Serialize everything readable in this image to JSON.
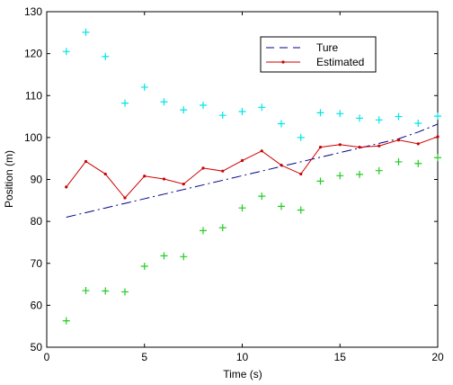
{
  "chart_data": {
    "type": "line",
    "title": "",
    "xlabel": "Time (s)",
    "ylabel": "Position (m)",
    "xlim": [
      0,
      20
    ],
    "ylim": [
      50,
      130
    ],
    "xticks": [
      0,
      5,
      10,
      15,
      20
    ],
    "yticks": [
      50,
      60,
      70,
      80,
      90,
      100,
      110,
      120,
      130
    ],
    "grid": false,
    "legend_position": "top-right",
    "x": [
      1,
      2,
      3,
      4,
      5,
      6,
      7,
      8,
      9,
      10,
      11,
      12,
      13,
      14,
      15,
      16,
      17,
      18,
      19,
      20
    ],
    "series": [
      {
        "name": "Ture",
        "style": "dashdot",
        "color": "#00008b",
        "values": [
          81.0,
          82.1,
          83.2,
          84.3,
          85.4,
          86.5,
          87.6,
          88.7,
          89.8,
          90.9,
          92.0,
          93.1,
          94.2,
          95.3,
          96.4,
          97.5,
          98.6,
          99.7,
          101.3,
          103.2
        ]
      },
      {
        "name": "Estimated",
        "style": "solid-dot",
        "color": "#cc0000",
        "values": [
          88.2,
          94.3,
          91.3,
          85.6,
          90.8,
          90.1,
          88.9,
          92.7,
          92.0,
          94.5,
          96.8,
          93.4,
          91.3,
          97.7,
          98.3,
          97.7,
          98.0,
          99.4,
          98.5,
          100.2
        ]
      },
      {
        "style": "marker-plus",
        "color": "#00e5e5",
        "values": [
          120.5,
          125.1,
          119.3,
          108.2,
          112.0,
          108.5,
          106.6,
          107.7,
          105.3,
          106.2,
          107.2,
          103.3,
          100.0,
          105.9,
          105.7,
          104.6,
          104.2,
          105.0,
          103.4,
          105.1
        ]
      },
      {
        "style": "marker-plus",
        "color": "#22cc22",
        "values": [
          56.3,
          63.5,
          63.4,
          63.2,
          69.3,
          71.8,
          71.6,
          77.8,
          78.5,
          83.2,
          86.0,
          83.6,
          82.7,
          89.6,
          90.9,
          91.2,
          92.1,
          94.2,
          93.8,
          95.2
        ]
      }
    ]
  }
}
